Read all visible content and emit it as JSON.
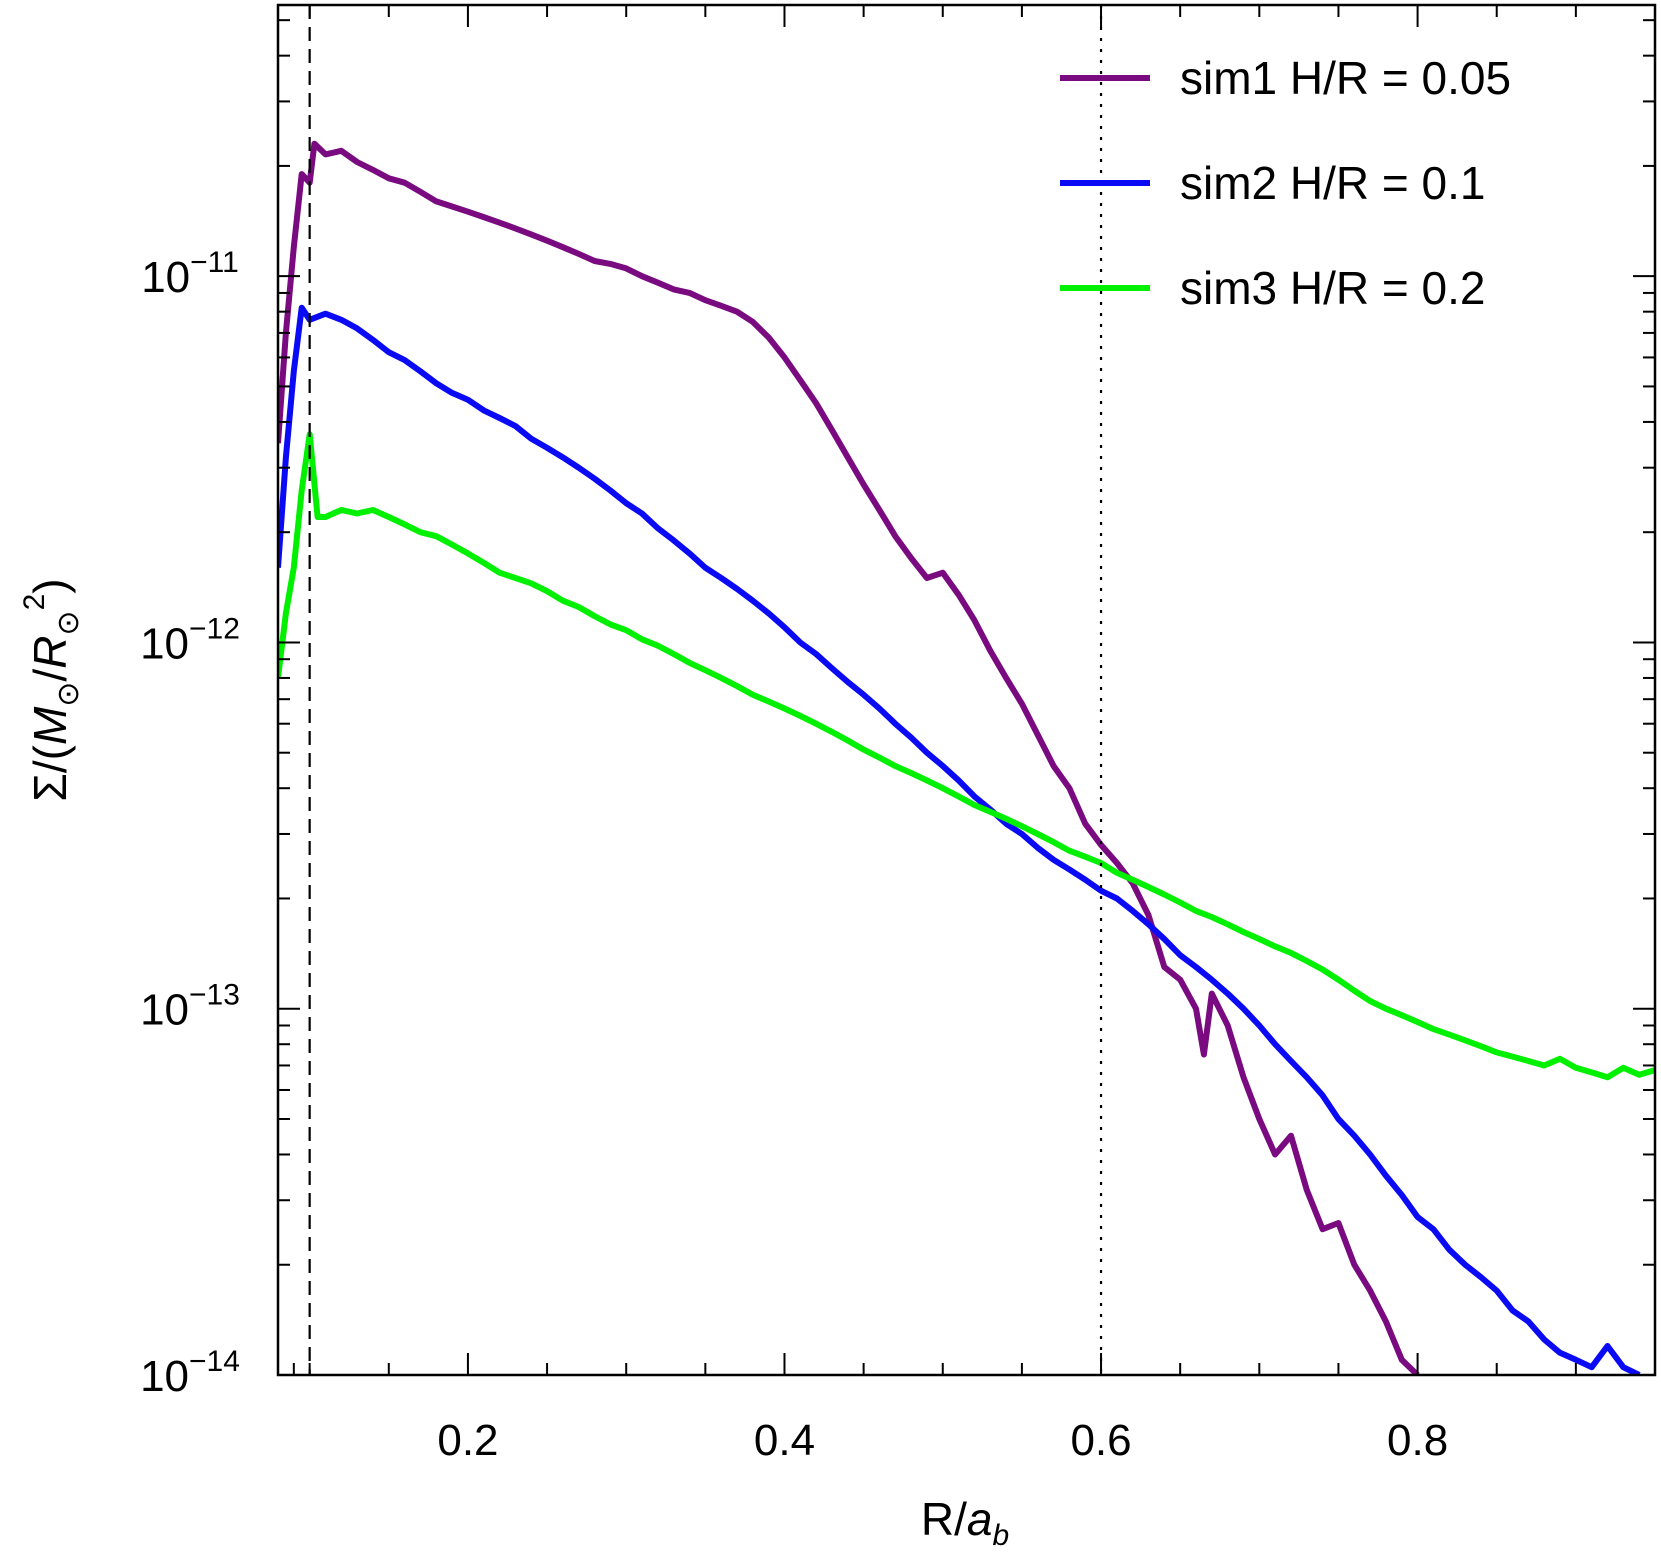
{
  "chart_data": {
    "type": "line",
    "xlabel": "R/a_b",
    "ylabel": "Σ/(M⊙/R⊙²)",
    "xlim": [
      0.08,
      0.95
    ],
    "ylim": [
      1e-14,
      5.5e-11
    ],
    "yscale": "log",
    "grid": false,
    "legend_position": "top-right",
    "x_ticks": [
      0.2,
      0.4,
      0.6,
      0.8
    ],
    "x_tick_labels": [
      "0.2",
      "0.4",
      "0.6",
      "0.8"
    ],
    "y_ticks": [
      1e-14,
      1e-13,
      1e-12,
      1e-11
    ],
    "y_tick_labels": [
      {
        "mantissa": "10",
        "exponent": "−14"
      },
      {
        "mantissa": "10",
        "exponent": "−13"
      },
      {
        "mantissa": "10",
        "exponent": "−12"
      },
      {
        "mantissa": "10",
        "exponent": "−11"
      }
    ],
    "vlines": [
      {
        "x": 0.1,
        "style": "dashed"
      },
      {
        "x": 0.6,
        "style": "dotted"
      }
    ],
    "series": [
      {
        "name": "sim1 H/R = 0.05",
        "color": "#7a0a80",
        "points": [
          [
            0.08,
            3.5e-12
          ],
          [
            0.085,
            7e-12
          ],
          [
            0.09,
            1.2e-11
          ],
          [
            0.095,
            1.9e-11
          ],
          [
            0.1,
            1.8e-11
          ],
          [
            0.103,
            2.3e-11
          ],
          [
            0.11,
            2.15e-11
          ],
          [
            0.12,
            2.2e-11
          ],
          [
            0.13,
            2.05e-11
          ],
          [
            0.14,
            1.95e-11
          ],
          [
            0.15,
            1.85e-11
          ],
          [
            0.16,
            1.8e-11
          ],
          [
            0.17,
            1.7e-11
          ],
          [
            0.18,
            1.6e-11
          ],
          [
            0.19,
            1.55e-11
          ],
          [
            0.2,
            1.5e-11
          ],
          [
            0.21,
            1.45e-11
          ],
          [
            0.22,
            1.4e-11
          ],
          [
            0.23,
            1.35e-11
          ],
          [
            0.24,
            1.3e-11
          ],
          [
            0.25,
            1.25e-11
          ],
          [
            0.26,
            1.2e-11
          ],
          [
            0.27,
            1.15e-11
          ],
          [
            0.28,
            1.1e-11
          ],
          [
            0.29,
            1.08e-11
          ],
          [
            0.3,
            1.05e-11
          ],
          [
            0.31,
            1e-11
          ],
          [
            0.32,
            9.6e-12
          ],
          [
            0.33,
            9.2e-12
          ],
          [
            0.34,
            9e-12
          ],
          [
            0.35,
            8.6e-12
          ],
          [
            0.36,
            8.3e-12
          ],
          [
            0.37,
            8e-12
          ],
          [
            0.38,
            7.5e-12
          ],
          [
            0.39,
            6.8e-12
          ],
          [
            0.4,
            6e-12
          ],
          [
            0.41,
            5.2e-12
          ],
          [
            0.42,
            4.5e-12
          ],
          [
            0.43,
            3.8e-12
          ],
          [
            0.44,
            3.2e-12
          ],
          [
            0.45,
            2.7e-12
          ],
          [
            0.46,
            2.3e-12
          ],
          [
            0.47,
            1.95e-12
          ],
          [
            0.48,
            1.7e-12
          ],
          [
            0.49,
            1.5e-12
          ],
          [
            0.5,
            1.55e-12
          ],
          [
            0.51,
            1.35e-12
          ],
          [
            0.52,
            1.15e-12
          ],
          [
            0.53,
            9.5e-13
          ],
          [
            0.54,
            8e-13
          ],
          [
            0.55,
            6.8e-13
          ],
          [
            0.56,
            5.6e-13
          ],
          [
            0.57,
            4.6e-13
          ],
          [
            0.58,
            4e-13
          ],
          [
            0.59,
            3.2e-13
          ],
          [
            0.6,
            2.8e-13
          ],
          [
            0.61,
            2.5e-13
          ],
          [
            0.62,
            2.2e-13
          ],
          [
            0.63,
            1.8e-13
          ],
          [
            0.64,
            1.3e-13
          ],
          [
            0.65,
            1.2e-13
          ],
          [
            0.66,
            1e-13
          ],
          [
            0.665,
            7.5e-14
          ],
          [
            0.67,
            1.1e-13
          ],
          [
            0.68,
            9e-14
          ],
          [
            0.69,
            6.5e-14
          ],
          [
            0.7,
            5e-14
          ],
          [
            0.71,
            4e-14
          ],
          [
            0.72,
            4.5e-14
          ],
          [
            0.73,
            3.2e-14
          ],
          [
            0.74,
            2.5e-14
          ],
          [
            0.75,
            2.6e-14
          ],
          [
            0.76,
            2e-14
          ],
          [
            0.77,
            1.7e-14
          ],
          [
            0.78,
            1.4e-14
          ],
          [
            0.79,
            1.1e-14
          ],
          [
            0.8,
            1e-14
          ]
        ]
      },
      {
        "name": "sim2 H/R = 0.1",
        "color": "#0a0af5",
        "points": [
          [
            0.08,
            1.6e-12
          ],
          [
            0.085,
            3.2e-12
          ],
          [
            0.09,
            5.5e-12
          ],
          [
            0.095,
            8.2e-12
          ],
          [
            0.1,
            7.6e-12
          ],
          [
            0.11,
            7.9e-12
          ],
          [
            0.12,
            7.6e-12
          ],
          [
            0.13,
            7.2e-12
          ],
          [
            0.14,
            6.7e-12
          ],
          [
            0.15,
            6.2e-12
          ],
          [
            0.16,
            5.9e-12
          ],
          [
            0.17,
            5.5e-12
          ],
          [
            0.18,
            5.1e-12
          ],
          [
            0.19,
            4.8e-12
          ],
          [
            0.2,
            4.6e-12
          ],
          [
            0.21,
            4.3e-12
          ],
          [
            0.22,
            4.1e-12
          ],
          [
            0.23,
            3.9e-12
          ],
          [
            0.24,
            3.6e-12
          ],
          [
            0.25,
            3.4e-12
          ],
          [
            0.26,
            3.2e-12
          ],
          [
            0.27,
            3e-12
          ],
          [
            0.28,
            2.8e-12
          ],
          [
            0.29,
            2.6e-12
          ],
          [
            0.3,
            2.4e-12
          ],
          [
            0.31,
            2.25e-12
          ],
          [
            0.32,
            2.05e-12
          ],
          [
            0.33,
            1.9e-12
          ],
          [
            0.34,
            1.75e-12
          ],
          [
            0.35,
            1.6e-12
          ],
          [
            0.36,
            1.5e-12
          ],
          [
            0.37,
            1.4e-12
          ],
          [
            0.38,
            1.3e-12
          ],
          [
            0.39,
            1.2e-12
          ],
          [
            0.4,
            1.1e-12
          ],
          [
            0.41,
            1e-12
          ],
          [
            0.42,
            9.3e-13
          ],
          [
            0.43,
            8.5e-13
          ],
          [
            0.44,
            7.8e-13
          ],
          [
            0.45,
            7.2e-13
          ],
          [
            0.46,
            6.6e-13
          ],
          [
            0.47,
            6e-13
          ],
          [
            0.48,
            5.5e-13
          ],
          [
            0.49,
            5e-13
          ],
          [
            0.5,
            4.6e-13
          ],
          [
            0.51,
            4.2e-13
          ],
          [
            0.52,
            3.8e-13
          ],
          [
            0.53,
            3.5e-13
          ],
          [
            0.54,
            3.2e-13
          ],
          [
            0.55,
            3e-13
          ],
          [
            0.56,
            2.75e-13
          ],
          [
            0.57,
            2.55e-13
          ],
          [
            0.58,
            2.4e-13
          ],
          [
            0.59,
            2.25e-13
          ],
          [
            0.6,
            2.1e-13
          ],
          [
            0.61,
            2e-13
          ],
          [
            0.62,
            1.85e-13
          ],
          [
            0.63,
            1.7e-13
          ],
          [
            0.64,
            1.55e-13
          ],
          [
            0.65,
            1.4e-13
          ],
          [
            0.66,
            1.3e-13
          ],
          [
            0.67,
            1.2e-13
          ],
          [
            0.68,
            1.1e-13
          ],
          [
            0.69,
            1e-13
          ],
          [
            0.7,
            9e-14
          ],
          [
            0.71,
            8e-14
          ],
          [
            0.72,
            7.2e-14
          ],
          [
            0.73,
            6.5e-14
          ],
          [
            0.74,
            5.8e-14
          ],
          [
            0.75,
            5e-14
          ],
          [
            0.76,
            4.5e-14
          ],
          [
            0.77,
            4e-14
          ],
          [
            0.78,
            3.5e-14
          ],
          [
            0.79,
            3.1e-14
          ],
          [
            0.8,
            2.7e-14
          ],
          [
            0.81,
            2.5e-14
          ],
          [
            0.82,
            2.2e-14
          ],
          [
            0.83,
            2e-14
          ],
          [
            0.84,
            1.85e-14
          ],
          [
            0.85,
            1.7e-14
          ],
          [
            0.86,
            1.5e-14
          ],
          [
            0.87,
            1.4e-14
          ],
          [
            0.88,
            1.25e-14
          ],
          [
            0.89,
            1.15e-14
          ],
          [
            0.9,
            1.1e-14
          ],
          [
            0.91,
            1.05e-14
          ],
          [
            0.92,
            1.2e-14
          ],
          [
            0.93,
            1.05e-14
          ],
          [
            0.94,
            1e-14
          ]
        ]
      },
      {
        "name": "sim3 H/R = 0.2",
        "color": "#00f000",
        "points": [
          [
            0.08,
            8e-13
          ],
          [
            0.085,
            1.2e-12
          ],
          [
            0.09,
            1.6e-12
          ],
          [
            0.095,
            2.6e-12
          ],
          [
            0.1,
            3.7e-12
          ],
          [
            0.105,
            2.2e-12
          ],
          [
            0.11,
            2.2e-12
          ],
          [
            0.12,
            2.3e-12
          ],
          [
            0.13,
            2.25e-12
          ],
          [
            0.14,
            2.3e-12
          ],
          [
            0.15,
            2.2e-12
          ],
          [
            0.16,
            2.1e-12
          ],
          [
            0.17,
            2e-12
          ],
          [
            0.18,
            1.95e-12
          ],
          [
            0.19,
            1.85e-12
          ],
          [
            0.2,
            1.75e-12
          ],
          [
            0.21,
            1.65e-12
          ],
          [
            0.22,
            1.55e-12
          ],
          [
            0.23,
            1.5e-12
          ],
          [
            0.24,
            1.45e-12
          ],
          [
            0.25,
            1.38e-12
          ],
          [
            0.26,
            1.3e-12
          ],
          [
            0.27,
            1.25e-12
          ],
          [
            0.28,
            1.18e-12
          ],
          [
            0.29,
            1.12e-12
          ],
          [
            0.3,
            1.08e-12
          ],
          [
            0.31,
            1.02e-12
          ],
          [
            0.32,
            9.8e-13
          ],
          [
            0.33,
            9.3e-13
          ],
          [
            0.34,
            8.8e-13
          ],
          [
            0.35,
            8.4e-13
          ],
          [
            0.36,
            8e-13
          ],
          [
            0.37,
            7.6e-13
          ],
          [
            0.38,
            7.2e-13
          ],
          [
            0.39,
            6.9e-13
          ],
          [
            0.4,
            6.6e-13
          ],
          [
            0.41,
            6.3e-13
          ],
          [
            0.42,
            6e-13
          ],
          [
            0.43,
            5.7e-13
          ],
          [
            0.44,
            5.4e-13
          ],
          [
            0.45,
            5.1e-13
          ],
          [
            0.46,
            4.85e-13
          ],
          [
            0.47,
            4.6e-13
          ],
          [
            0.48,
            4.4e-13
          ],
          [
            0.49,
            4.2e-13
          ],
          [
            0.5,
            4e-13
          ],
          [
            0.51,
            3.8e-13
          ],
          [
            0.52,
            3.6e-13
          ],
          [
            0.53,
            3.45e-13
          ],
          [
            0.54,
            3.3e-13
          ],
          [
            0.55,
            3.15e-13
          ],
          [
            0.56,
            3e-13
          ],
          [
            0.57,
            2.85e-13
          ],
          [
            0.58,
            2.7e-13
          ],
          [
            0.59,
            2.6e-13
          ],
          [
            0.6,
            2.5e-13
          ],
          [
            0.61,
            2.35e-13
          ],
          [
            0.62,
            2.25e-13
          ],
          [
            0.63,
            2.15e-13
          ],
          [
            0.64,
            2.05e-13
          ],
          [
            0.65,
            1.95e-13
          ],
          [
            0.66,
            1.85e-13
          ],
          [
            0.67,
            1.78e-13
          ],
          [
            0.68,
            1.7e-13
          ],
          [
            0.69,
            1.62e-13
          ],
          [
            0.7,
            1.55e-13
          ],
          [
            0.71,
            1.48e-13
          ],
          [
            0.72,
            1.42e-13
          ],
          [
            0.73,
            1.35e-13
          ],
          [
            0.74,
            1.28e-13
          ],
          [
            0.75,
            1.2e-13
          ],
          [
            0.76,
            1.12e-13
          ],
          [
            0.77,
            1.05e-13
          ],
          [
            0.78,
            1e-13
          ],
          [
            0.79,
            9.6e-14
          ],
          [
            0.8,
            9.2e-14
          ],
          [
            0.81,
            8.8e-14
          ],
          [
            0.82,
            8.5e-14
          ],
          [
            0.83,
            8.2e-14
          ],
          [
            0.84,
            7.9e-14
          ],
          [
            0.85,
            7.6e-14
          ],
          [
            0.86,
            7.4e-14
          ],
          [
            0.87,
            7.2e-14
          ],
          [
            0.88,
            7e-14
          ],
          [
            0.89,
            7.3e-14
          ],
          [
            0.9,
            6.9e-14
          ],
          [
            0.91,
            6.7e-14
          ],
          [
            0.92,
            6.5e-14
          ],
          [
            0.93,
            6.9e-14
          ],
          [
            0.94,
            6.6e-14
          ],
          [
            0.95,
            6.8e-14
          ]
        ]
      }
    ]
  }
}
